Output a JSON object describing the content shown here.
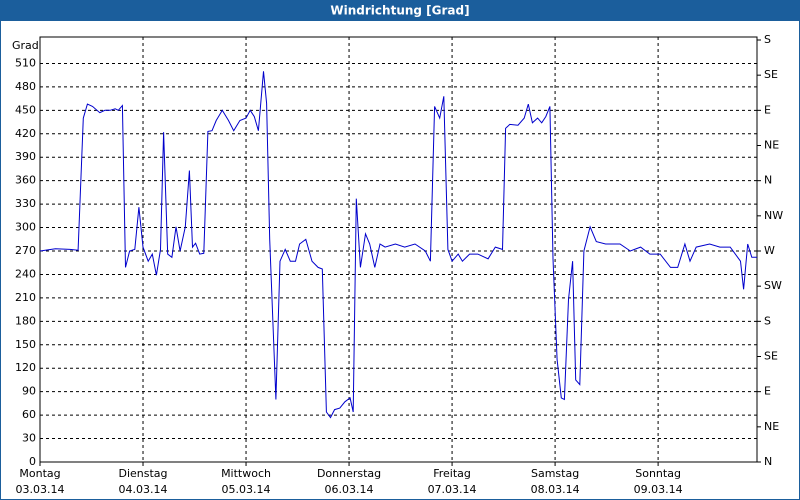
{
  "chart_data": {
    "type": "line",
    "title": "Windrichtung [Grad]",
    "ylabel": "Grad",
    "color": "#0000cc",
    "grid": true,
    "x": [
      0,
      0.15,
      0.29,
      0.37,
      0.42,
      0.46,
      0.51,
      0.58,
      0.63,
      0.68,
      0.73,
      0.76,
      0.8,
      0.83,
      0.87,
      0.92,
      0.96,
      1.0,
      1.05,
      1.09,
      1.13,
      1.17,
      1.2,
      1.24,
      1.28,
      1.32,
      1.36,
      1.41,
      1.45,
      1.48,
      1.51,
      1.55,
      1.59,
      1.63,
      1.67,
      1.71,
      1.77,
      1.83,
      1.88,
      1.94,
      2.0,
      2.04,
      2.08,
      2.12,
      2.17,
      2.2,
      2.23,
      2.29,
      2.33,
      2.38,
      2.43,
      2.48,
      2.52,
      2.58,
      2.64,
      2.7,
      2.74,
      2.78,
      2.82,
      2.86,
      2.91,
      2.96,
      3.01,
      3.04,
      3.07,
      3.11,
      3.16,
      3.2,
      3.25,
      3.3,
      3.35,
      3.45,
      3.54,
      3.64,
      3.74,
      3.79,
      3.83,
      3.88,
      3.92,
      3.96,
      4.0,
      4.06,
      4.1,
      4.17,
      4.25,
      4.35,
      4.42,
      4.49,
      4.52,
      4.56,
      4.64,
      4.7,
      4.74,
      4.78,
      4.83,
      4.87,
      4.91,
      4.95,
      4.98,
      5.02,
      5.06,
      5.09,
      5.13,
      5.17,
      5.2,
      5.24,
      5.28,
      5.34,
      5.4,
      5.49,
      5.63,
      5.73,
      5.83,
      5.92,
      6.02,
      6.12,
      6.19,
      6.26,
      6.31,
      6.37,
      6.5,
      6.6,
      6.7,
      6.8,
      6.83,
      6.87,
      6.91,
      6.96
    ],
    "values": [
      270,
      273,
      272,
      271,
      440,
      458,
      455,
      447,
      450,
      450,
      452,
      450,
      456,
      249,
      270,
      272,
      326,
      275,
      257,
      266,
      239,
      272,
      422,
      266,
      262,
      301,
      270,
      301,
      373,
      275,
      280,
      266,
      267,
      423,
      424,
      437,
      450,
      437,
      424,
      437,
      440,
      450,
      442,
      424,
      500,
      459,
      285,
      80,
      257,
      272,
      257,
      257,
      279,
      285,
      257,
      249,
      247,
      64,
      57,
      67,
      69,
      77,
      82,
      64,
      337,
      249,
      292,
      279,
      249,
      279,
      275,
      279,
      275,
      279,
      270,
      257,
      455,
      440,
      468,
      272,
      257,
      266,
      257,
      266,
      266,
      260,
      275,
      272,
      427,
      432,
      431,
      440,
      458,
      434,
      440,
      434,
      442,
      455,
      260,
      131,
      82,
      80,
      208,
      257,
      105,
      99,
      270,
      301,
      282,
      279,
      279,
      270,
      275,
      266,
      266,
      249,
      249,
      279,
      257,
      275,
      279,
      275,
      275,
      257,
      221,
      279,
      262,
      262
    ],
    "xlim": [
      0,
      6.96
    ],
    "xticks": [
      {
        "value": 0,
        "label": [
          "Montag",
          "03.03.14"
        ]
      },
      {
        "value": 1,
        "label": [
          "Dienstag",
          "04.03.14"
        ]
      },
      {
        "value": 2,
        "label": [
          "Mittwoch",
          "05.03.14"
        ]
      },
      {
        "value": 3,
        "label": [
          "Donnerstag",
          "06.03.14"
        ]
      },
      {
        "value": 4,
        "label": [
          "Freitag",
          "07.03.14"
        ]
      },
      {
        "value": 5,
        "label": [
          "Samstag",
          "08.03.14"
        ]
      },
      {
        "value": 6,
        "label": [
          "Sonntag",
          "09.03.14"
        ]
      }
    ],
    "ylim": [
      0,
      540
    ],
    "yticks": [
      0,
      30,
      60,
      90,
      120,
      150,
      180,
      210,
      240,
      270,
      300,
      330,
      360,
      390,
      420,
      450,
      480,
      510
    ],
    "y2lim": [
      0,
      540
    ],
    "y2ticks": [
      {
        "value": 0,
        "label": "N"
      },
      {
        "value": 45,
        "label": "NE"
      },
      {
        "value": 90,
        "label": "E"
      },
      {
        "value": 135,
        "label": "SE"
      },
      {
        "value": 180,
        "label": "S"
      },
      {
        "value": 225,
        "label": "SW"
      },
      {
        "value": 270,
        "label": "W"
      },
      {
        "value": 315,
        "label": "NW"
      },
      {
        "value": 360,
        "label": "N"
      },
      {
        "value": 405,
        "label": "NE"
      },
      {
        "value": 450,
        "label": "E"
      },
      {
        "value": 495,
        "label": "SE"
      },
      {
        "value": 540,
        "label": "S"
      }
    ]
  }
}
